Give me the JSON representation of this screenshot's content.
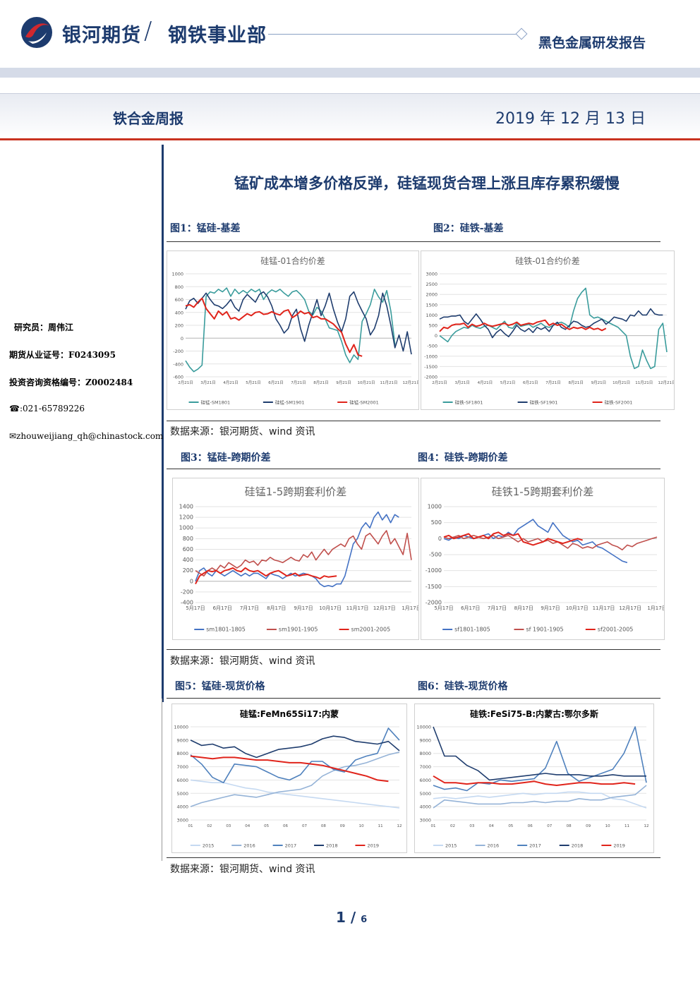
{
  "header": {
    "brand": "银河期货",
    "slash": "/",
    "dept": "钢铁事业部",
    "report_type": "黑色金属研发报告",
    "weekly": "铁合金周报",
    "date": "2019 年 12 月 13 日"
  },
  "sidebar": {
    "analyst": "研究员：周伟江",
    "license": "期货从业证号：F0243095",
    "consult": "投资咨询资格编号：Z0002484",
    "phone": "☎:021-65789226",
    "email": "✉zhouweijiang_qh@chinastock.com"
  },
  "title": "锰矿成本增多价格反弹，硅锰现货合理上涨且库存累积缓慢",
  "figs": {
    "f1": "图1：锰硅-基差",
    "f2": "图2：硅铁-基差",
    "f3": "图3：锰硅-跨期价差",
    "f4": "图4：硅铁-跨期价差",
    "f5": "图5：锰硅-现货价格",
    "f6": "图6：硅铁-现货价格"
  },
  "source": "数据来源：银河期货、wind 资讯",
  "pager": {
    "page": "1",
    "total": "6"
  },
  "chart_data": [
    {
      "type": "line",
      "title": "硅锰-01合约价差",
      "ylim": [
        -600,
        1000
      ],
      "y_ticks": [
        "1000",
        "800",
        "600",
        "400",
        "200",
        "0",
        "-200",
        "-400",
        "-600"
      ],
      "x_ticks": [
        "2月21日",
        "3月21日",
        "4月21日",
        "5月21日",
        "6月21日",
        "7月21日",
        "8月21日",
        "9月21日",
        "10月21日",
        "11月21日",
        "12月21日"
      ],
      "series": [
        {
          "name": "硅锰-SM1801",
          "color": "#3a9c9c",
          "values": [
            -350,
            -450,
            -520,
            -480,
            -420,
            650,
            720,
            700,
            760,
            720,
            780,
            650,
            760,
            690,
            740,
            700,
            760,
            720,
            760,
            600,
            700,
            750,
            720,
            760,
            700,
            650,
            720,
            740,
            680,
            600,
            420,
            360,
            480,
            420,
            300,
            160,
            140,
            120,
            -50,
            -260,
            -380,
            -260,
            -330,
            260,
            380,
            520,
            760,
            640,
            560,
            740,
            420,
            -100
          ]
        },
        {
          "name": "硅锰-SM1901",
          "color": "#1f3d6e",
          "values": [
            450,
            580,
            620,
            540,
            620,
            700,
            600,
            520,
            500,
            460,
            520,
            600,
            480,
            420,
            600,
            680,
            620,
            560,
            680,
            720,
            640,
            500,
            300,
            200,
            80,
            150,
            350,
            450,
            150,
            -50,
            200,
            400,
            600,
            350,
            500,
            700,
            450,
            250,
            100,
            300,
            650,
            720,
            550,
            420,
            300,
            50,
            150,
            350,
            700,
            500,
            200,
            -150,
            50,
            -200,
            100,
            -250
          ]
        },
        {
          "name": "硅锰-SM2001",
          "color": "#e0241b",
          "values": [
            500,
            520,
            480,
            560,
            620,
            460,
            380,
            300,
            420,
            360,
            410,
            300,
            320,
            280,
            330,
            380,
            350,
            400,
            410,
            370,
            380,
            410,
            380,
            360,
            420,
            440,
            320,
            360,
            420,
            380,
            400,
            320,
            340,
            300,
            300,
            260,
            220,
            150,
            90,
            -90,
            -220,
            -100,
            -260,
            -280
          ]
        }
      ]
    },
    {
      "type": "line",
      "title": "硅铁-01合约价差",
      "ylim": [
        -2000,
        3000
      ],
      "y_ticks": [
        "3000",
        "2500",
        "2000",
        "1500",
        "1000",
        "500",
        "0",
        "-500",
        "-1000",
        "-1500",
        "-2000"
      ],
      "x_ticks": [
        "2月21日",
        "3月21日",
        "4月21日",
        "5月21日",
        "6月21日",
        "7月21日",
        "8月21日",
        "9月21日",
        "10月21日",
        "11月21日",
        "12月21日"
      ],
      "series": [
        {
          "name": "硅铁-SF1801",
          "color": "#3a9c9c",
          "values": [
            0,
            -150,
            -300,
            0,
            200,
            300,
            400,
            350,
            500,
            400,
            350,
            450,
            500,
            400,
            300,
            500,
            700,
            400,
            350,
            600,
            450,
            500,
            550,
            400,
            500,
            600,
            450,
            400,
            500,
            600,
            650,
            550,
            400,
            1200,
            1800,
            2100,
            2300,
            1000,
            850,
            900,
            800,
            700,
            600,
            500,
            400,
            200,
            0,
            -1000,
            -1600,
            -1500,
            -700,
            -1200,
            -1600,
            -1500,
            300,
            600,
            -800
          ]
        },
        {
          "name": "硅铁-SF1901",
          "color": "#1f3d6e",
          "values": [
            800,
            900,
            900,
            950,
            950,
            1000,
            700,
            550,
            800,
            1050,
            800,
            500,
            300,
            -100,
            150,
            300,
            100,
            -50,
            200,
            500,
            300,
            200,
            350,
            150,
            400,
            300,
            400,
            200,
            500,
            650,
            400,
            300,
            500,
            700,
            650,
            500,
            400,
            450,
            600,
            700,
            800,
            550,
            700,
            900,
            850,
            800,
            700,
            1000,
            950,
            1200,
            1000,
            1000,
            1300,
            1050,
            1000,
            1000
          ]
        },
        {
          "name": "硅铁-SF2001",
          "color": "#e0241b",
          "values": [
            200,
            400,
            350,
            500,
            550,
            550,
            600,
            400,
            550,
            450,
            500,
            600,
            500,
            450,
            500,
            550,
            600,
            500,
            550,
            650,
            500,
            550,
            600,
            550,
            650,
            700,
            750,
            500,
            600,
            500,
            550,
            400,
            300,
            400,
            350,
            400,
            300,
            400,
            300,
            350,
            250,
            350
          ]
        }
      ]
    },
    {
      "type": "line",
      "title": "硅锰1-5跨期套利价差",
      "ylim": [
        -400,
        1400
      ],
      "y_ticks": [
        "1400",
        "1200",
        "1000",
        "800",
        "600",
        "400",
        "200",
        "0",
        "-200",
        "-400"
      ],
      "x_ticks": [
        "5月17日",
        "6月17日",
        "7月17日",
        "8月17日",
        "9月17日",
        "10月17日",
        "11月17日",
        "12月17日",
        "1月17日"
      ],
      "series": [
        {
          "name": "sm1801-1805",
          "color": "#4472c4",
          "values": [
            0,
            200,
            250,
            150,
            100,
            200,
            150,
            100,
            150,
            200,
            150,
            100,
            150,
            100,
            150,
            150,
            100,
            50,
            150,
            120,
            100,
            50,
            100,
            150,
            100,
            120,
            150,
            130,
            100,
            50,
            -50,
            -100,
            -80,
            -100,
            -50,
            -50,
            100,
            400,
            700,
            800,
            1000,
            1100,
            1000,
            1200,
            1300,
            1150,
            1250,
            1100,
            1250,
            1200
          ]
        },
        {
          "name": "sm1901-1905",
          "color": "#c0504d",
          "values": [
            200,
            150,
            100,
            200,
            250,
            200,
            300,
            250,
            350,
            300,
            250,
            300,
            400,
            350,
            380,
            300,
            400,
            380,
            450,
            400,
            380,
            350,
            400,
            450,
            400,
            380,
            500,
            450,
            550,
            400,
            500,
            600,
            500,
            600,
            650,
            700,
            650,
            800,
            850,
            700,
            600,
            850,
            900,
            800,
            700,
            850,
            950,
            700,
            800,
            650,
            500,
            900,
            400
          ]
        },
        {
          "name": "sm2001-2005",
          "color": "#e0241b",
          "values": [
            -50,
            100,
            150,
            200,
            180,
            200,
            150,
            200,
            220,
            250,
            200,
            180,
            250,
            200,
            180,
            200,
            150,
            100,
            150,
            180,
            200,
            150,
            100,
            120,
            150,
            100,
            120,
            130,
            100,
            80,
            50,
            100,
            80,
            90,
            100
          ]
        }
      ]
    },
    {
      "type": "line",
      "title": "硅铁1-5跨期套利价差",
      "ylim": [
        -2000,
        1000
      ],
      "y_ticks": [
        "1000",
        "500",
        "0",
        "-500",
        "-1000",
        "-1500",
        "-2000"
      ],
      "x_ticks": [
        "5月17日",
        "6月17日",
        "7月17日",
        "8月17日",
        "9月17日",
        "10月17日",
        "11月17日",
        "12月17日",
        "1月17日"
      ],
      "series": [
        {
          "name": "sf1801-1805",
          "color": "#4472c4",
          "values": [
            0,
            -50,
            50,
            0,
            100,
            50,
            0,
            50,
            100,
            150,
            0,
            100,
            50,
            200,
            100,
            300,
            400,
            500,
            600,
            400,
            300,
            200,
            500,
            300,
            100,
            0,
            -100,
            -50,
            -200,
            -150,
            -100,
            -250,
            -300,
            -400,
            -500,
            -600,
            -700,
            -750
          ]
        },
        {
          "name": "sf 1901-1905",
          "color": "#c0504d",
          "values": [
            50,
            0,
            50,
            100,
            0,
            50,
            100,
            50,
            0,
            50,
            100,
            0,
            50,
            100,
            0,
            -100,
            0,
            -100,
            -50,
            0,
            -100,
            -50,
            -150,
            -100,
            -200,
            -300,
            -150,
            -200,
            -300,
            -250,
            -300,
            -200,
            -150,
            -100,
            -200,
            -250,
            -350,
            -200,
            -250,
            -150,
            -100,
            -50,
            0,
            50
          ]
        },
        {
          "name": "sf2001-2005",
          "color": "#e0241b",
          "values": [
            50,
            100,
            0,
            50,
            100,
            150,
            0,
            50,
            100,
            0,
            150,
            200,
            100,
            150,
            100,
            150,
            -100,
            -150,
            -200,
            -150,
            -100,
            0,
            -50,
            -100,
            -150,
            -100,
            -50,
            0,
            -50
          ]
        }
      ]
    },
    {
      "type": "line",
      "title": "硅锰:FeMn65Si17:内蒙",
      "ylim": [
        3000,
        10000
      ],
      "y_ticks": [
        "10000",
        "9000",
        "8000",
        "7000",
        "6000",
        "5000",
        "4000",
        "3000"
      ],
      "x_ticks": [
        "01",
        "02",
        "03",
        "04",
        "05",
        "06",
        "07",
        "08",
        "09",
        "10",
        "11",
        "12"
      ],
      "series": [
        {
          "name": "2015",
          "color": "#c5d9f1",
          "values": [
            6000,
            5900,
            5800,
            5800,
            5600,
            5400,
            5300,
            5100,
            5000,
            4900,
            4800,
            4700,
            4600,
            4500,
            4400,
            4300,
            4200,
            4100,
            4000,
            3900
          ]
        },
        {
          "name": "2016",
          "color": "#95b3d7",
          "values": [
            4000,
            4300,
            4500,
            4700,
            4900,
            4800,
            4700,
            4900,
            5100,
            5200,
            5300,
            5600,
            6300,
            6700,
            7000,
            7100,
            7300,
            7600,
            7900,
            8100
          ]
        },
        {
          "name": "2017",
          "color": "#4f81bd",
          "values": [
            7900,
            7200,
            6200,
            5800,
            7200,
            7100,
            7000,
            6600,
            6200,
            6000,
            6400,
            7400,
            7400,
            6800,
            6600,
            7500,
            7800,
            8000,
            9900,
            9000
          ]
        },
        {
          "name": "2018",
          "color": "#1f3d6e",
          "values": [
            9000,
            8600,
            8700,
            8400,
            8500,
            8000,
            7700,
            8000,
            8300,
            8400,
            8500,
            8700,
            9100,
            9300,
            9200,
            8900,
            8800,
            8700,
            8900,
            8200
          ]
        },
        {
          "name": "2019",
          "color": "#e0241b",
          "values": [
            7800,
            7700,
            7600,
            7700,
            7700,
            7600,
            7500,
            7500,
            7400,
            7300,
            7300,
            7200,
            7100,
            6900,
            6700,
            6500,
            6300,
            6000,
            5900
          ]
        }
      ]
    },
    {
      "type": "line",
      "title": "硅铁:FeSi75-B:内蒙古:鄂尔多斯",
      "ylim": [
        3000,
        10000
      ],
      "y_ticks": [
        "10000",
        "9000",
        "8000",
        "7000",
        "6000",
        "5000",
        "4000",
        "3000"
      ],
      "x_ticks": [
        "01",
        "02",
        "03",
        "04",
        "05",
        "06",
        "07",
        "08",
        "09",
        "10",
        "11",
        "12"
      ],
      "series": [
        {
          "name": "2015",
          "color": "#c5d9f1",
          "values": [
            4600,
            4700,
            4600,
            4700,
            4800,
            4700,
            4800,
            4900,
            5000,
            4900,
            5000,
            5000,
            5100,
            5100,
            5000,
            5000,
            4600,
            4500,
            4200,
            3900
          ]
        },
        {
          "name": "2016",
          "color": "#95b3d7",
          "values": [
            3900,
            4500,
            4400,
            4300,
            4200,
            4200,
            4200,
            4300,
            4300,
            4400,
            4300,
            4400,
            4400,
            4600,
            4500,
            4500,
            4700,
            4800,
            4900,
            5600
          ]
        },
        {
          "name": "2017",
          "color": "#4f81bd",
          "values": [
            5600,
            5300,
            5400,
            5200,
            5800,
            5700,
            6000,
            5900,
            6000,
            6100,
            6900,
            8900,
            6500,
            5900,
            6200,
            6500,
            6800,
            8000,
            10000,
            5800
          ]
        },
        {
          "name": "2018",
          "color": "#1f3d6e",
          "values": [
            10000,
            7800,
            7800,
            7100,
            6700,
            6000,
            6100,
            6200,
            6300,
            6400,
            6500,
            6400,
            6400,
            6400,
            6300,
            6300,
            6400,
            6300,
            6300,
            6300
          ]
        },
        {
          "name": "2019",
          "color": "#e0241b",
          "values": [
            6300,
            5800,
            5800,
            5700,
            5800,
            5800,
            5700,
            5700,
            5800,
            5900,
            5700,
            5600,
            5700,
            5800,
            5800,
            5700,
            5700,
            5800,
            5700
          ]
        }
      ]
    }
  ]
}
